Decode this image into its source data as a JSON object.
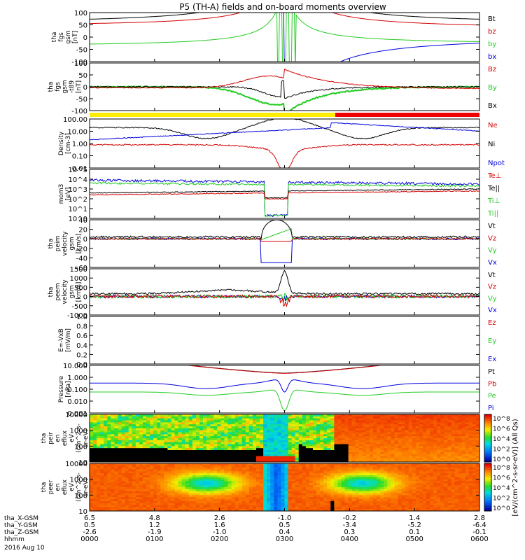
{
  "title": "P5 (TH-A) fields and on-board moments overview",
  "colors": {
    "black": "#000000",
    "red": "#d40000",
    "green": "#22cc22",
    "blue": "#0000dd",
    "yellow": "#ffee00",
    "barred": "#ee0000"
  },
  "chart_data": [
    {
      "type": "line",
      "name": "fgs",
      "ylabel": [
        "tha",
        "fgs",
        "gsm",
        "[nT]"
      ],
      "yticks": [
        "100",
        "50",
        "0",
        "-50",
        "-100"
      ],
      "ylim": [
        -100,
        100
      ],
      "legend": [
        {
          "label": "Bt",
          "color": "#000000"
        },
        {
          "label": "bz",
          "color": "#d40000"
        },
        {
          "label": "by",
          "color": "#22cc22"
        },
        {
          "label": "bx",
          "color": "#0000dd"
        }
      ]
    },
    {
      "type": "line",
      "name": "fgs-t89",
      "ylabel": [
        "tha",
        "fgs",
        "gsm",
        "-t89",
        "[nT]"
      ],
      "yticks": [
        "100",
        "50",
        "0",
        "-50",
        "-100"
      ],
      "ylim": [
        -120,
        120
      ],
      "legend": [
        {
          "label": "Bz",
          "color": "#d40000"
        },
        {
          "label": "By",
          "color": "#22cc22"
        },
        {
          "label": "Bx",
          "color": "#000000"
        }
      ]
    },
    {
      "type": "line",
      "name": "density",
      "ylabel": [
        "Density",
        "[cm-3]"
      ],
      "yticks": [
        "100.00",
        "10.00",
        "1.00",
        "0.10",
        "0.01"
      ],
      "log": true,
      "legend": [
        {
          "label": "Ne",
          "color": "#d40000"
        },
        {
          "label": "Ni",
          "color": "#000000"
        },
        {
          "label": "Npot",
          "color": "#0000dd"
        }
      ]
    },
    {
      "type": "line",
      "name": "temperature",
      "ylabel": [
        "mom3",
        "[eV]"
      ],
      "yticks": [
        "10^5",
        "10^4",
        "10^3",
        "10^2",
        "10^1",
        "10^0"
      ],
      "log": true,
      "legend": [
        {
          "label": "Te⊥",
          "color": "#d40000"
        },
        {
          "label": "Te||",
          "color": "#000000"
        },
        {
          "label": "Ti⊥",
          "color": "#22cc22"
        },
        {
          "label": "Ti||",
          "color": "#22cc22"
        }
      ]
    },
    {
      "type": "line",
      "name": "peim-velocity",
      "ylabel": [
        "tha",
        "peim",
        "velocity",
        "gsm",
        "[km/s]"
      ],
      "yticks": [
        "40",
        "20",
        "0",
        "-20",
        "-40",
        "-60"
      ],
      "ylim": [
        -60,
        40
      ],
      "legend": [
        {
          "label": "Vt",
          "color": "#000000"
        },
        {
          "label": "Vz",
          "color": "#d40000"
        },
        {
          "label": "Vy",
          "color": "#22cc22"
        },
        {
          "label": "Vx",
          "color": "#0000dd"
        }
      ]
    },
    {
      "type": "line",
      "name": "peem-velocity",
      "ylabel": [
        "tha",
        "peem",
        "velocity",
        "gsm",
        "[km/s]"
      ],
      "yticks": [
        "1500",
        "1000",
        "500",
        "0",
        "-500",
        "-1000"
      ],
      "ylim": [
        -1000,
        1500
      ],
      "legend": [
        {
          "label": "Vt",
          "color": "#000000"
        },
        {
          "label": "Vz",
          "color": "#d40000"
        },
        {
          "label": "Vy",
          "color": "#22cc22"
        },
        {
          "label": "Vx",
          "color": "#0000dd"
        }
      ]
    },
    {
      "type": "line",
      "name": "efield",
      "ylabel": [
        "E=-VxB",
        "[mV/m]"
      ],
      "yticks": [
        "1.0",
        "0.8",
        "0.6",
        "0.4",
        "0.2",
        "0.0"
      ],
      "ylim": [
        0,
        1
      ],
      "legend": [
        {
          "label": "Ez",
          "color": "#d40000"
        },
        {
          "label": "Ey",
          "color": "#22cc22"
        },
        {
          "label": "Ex",
          "color": "#0000dd"
        }
      ]
    },
    {
      "type": "line",
      "name": "pressure",
      "ylabel": [
        "Pressure",
        "[nPa]"
      ],
      "yticks": [
        "10.000",
        "1.000",
        "0.100",
        "0.010",
        "0.001"
      ],
      "log": true,
      "legend": [
        {
          "label": "Pt",
          "color": "#000000"
        },
        {
          "label": "Pb",
          "color": "#d40000"
        },
        {
          "label": "Pe",
          "color": "#22cc22"
        },
        {
          "label": "Pi",
          "color": "#0000dd"
        }
      ]
    },
    {
      "type": "heatmap",
      "name": "peir",
      "ylabel": [
        "tha",
        "peir",
        "en",
        "eflux",
        "eV",
        "(cm^2-s-",
        "sr-eV)"
      ],
      "yticks": [
        "10000",
        "1000",
        "100",
        "10"
      ],
      "log": true
    },
    {
      "type": "heatmap",
      "name": "peer",
      "ylabel": [
        "tha",
        "peer",
        "en",
        "eflux",
        "eV",
        "(cm^2-s-",
        "sr-eV)"
      ],
      "yticks": [
        "10000",
        "1000",
        "100",
        "10"
      ],
      "log": true
    }
  ],
  "colorbar": {
    "label": "[eV/(cm^2-s-sr-eV)] (All Qs)",
    "ticks_top": [
      "10^8",
      "10^6",
      "10^4",
      "10^2",
      "10^0"
    ],
    "ticks_bottom": [
      "10^8",
      "10^6",
      "10^4",
      "10^2",
      "10^0"
    ]
  },
  "xaxis": {
    "rows": [
      {
        "label": "tha_X-GSM",
        "values": [
          "6.5",
          "4.8",
          "2.6",
          "-1.0",
          "-0.2",
          "1.4",
          "2.8"
        ]
      },
      {
        "label": "tha_Y-GSM",
        "values": [
          "0.5",
          "1.2",
          "1.6",
          "0.5",
          "-3.4",
          "-5.2",
          "-6.4"
        ]
      },
      {
        "label": "tha_Z-GSM",
        "values": [
          "-2.6",
          "-1.9",
          "-1.0",
          "0.4",
          "0.3",
          "0.1",
          "-0.1"
        ]
      },
      {
        "label": "hhmm",
        "values": [
          "0000",
          "0100",
          "0200",
          "0300",
          "0400",
          "0500",
          "0600"
        ]
      }
    ],
    "date": "2016 Aug 10"
  }
}
